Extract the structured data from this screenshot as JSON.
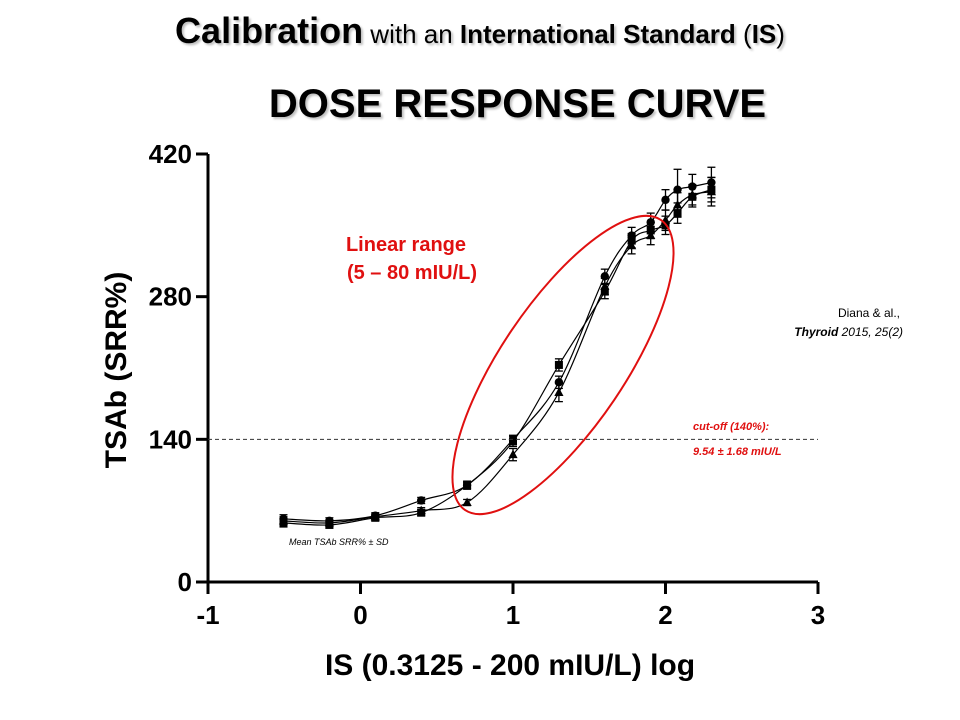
{
  "header": {
    "title_part1": "Calibration",
    "title_part2": " with an ",
    "title_part3": "International Standard",
    "title_part4": " (",
    "title_part5": "IS",
    "title_part6": ")",
    "subtitle": "DOSE RESPONSE CURVE"
  },
  "annotations": {
    "linear_range_line1": "Linear range",
    "linear_range_line2": "(5 – 80 mIU/L)",
    "cutoff_line1": "cut-off (140%):",
    "cutoff_line2": "9.54 ± 1.68 mIU/L",
    "reference_line1": "Diana & al.,",
    "reference_journal": "Thyroid",
    "reference_rest": " 2015, 25(2)",
    "note": "Mean TSAb SRR% ± SD"
  },
  "colors": {
    "accent": "#e01010",
    "axis": "#000000",
    "series": "#000000"
  },
  "chart_data": {
    "type": "scatter",
    "xlabel": "IS (0.3125 - 200 mIU/L) log",
    "ylabel": "TSAb (SRR%)",
    "xlim": [
      -1,
      3
    ],
    "ylim": [
      0,
      420
    ],
    "xticks": [
      "-1",
      "0",
      "1",
      "2",
      "3"
    ],
    "yticks": [
      "0",
      "140",
      "280",
      "420"
    ],
    "reference_line": 140,
    "x": [
      -0.505,
      -0.204,
      0.097,
      0.398,
      0.699,
      1.0,
      1.301,
      1.602,
      1.778,
      1.903,
      2.0,
      2.079,
      2.176,
      2.301
    ],
    "series": [
      {
        "marker": "circle",
        "values": [
          62,
          60,
          65,
          80,
          95,
          140,
          196,
          300,
          340,
          353,
          375,
          385,
          388,
          392
        ],
        "sd": [
          4,
          3,
          3,
          3,
          3,
          4,
          6,
          7,
          8,
          9,
          10,
          20,
          12,
          15
        ]
      },
      {
        "marker": "square",
        "values": [
          58,
          56,
          63,
          68,
          95,
          138,
          213,
          285,
          335,
          345,
          350,
          362,
          378,
          385
        ],
        "sd": [
          4,
          3,
          3,
          3,
          4,
          5,
          6,
          7,
          7,
          8,
          9,
          10,
          10,
          12
        ]
      },
      {
        "marker": "triangle",
        "values": [
          60,
          58,
          64,
          70,
          78,
          125,
          186,
          290,
          330,
          340,
          355,
          370,
          380,
          383
        ],
        "sd": [
          4,
          3,
          3,
          3,
          3,
          6,
          9,
          8,
          8,
          9,
          10,
          12,
          10,
          14
        ]
      }
    ]
  }
}
